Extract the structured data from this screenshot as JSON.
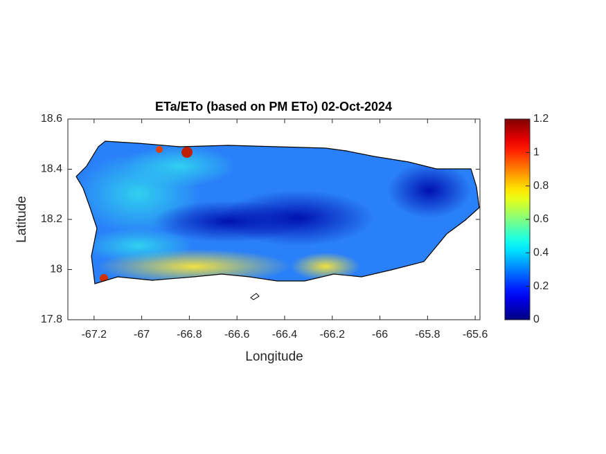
{
  "chart_data": {
    "type": "heatmap-map",
    "title": "ETa/ETo (based on PM ETo) 02-Oct-2024",
    "xlabel": "Longitude",
    "ylabel": "Latitude",
    "xlim": [
      -67.31,
      -65.58
    ],
    "xticks": [
      -67.2,
      -67,
      -66.8,
      -66.6,
      -66.4,
      -66.2,
      -66,
      -65.8,
      -65.6
    ],
    "ylim": [
      17.8,
      18.6
    ],
    "yticks": [
      17.8,
      18,
      18.2,
      18.4,
      18.6
    ],
    "colorbar": {
      "lim": [
        0,
        1.2
      ],
      "ticks": [
        0,
        0.2,
        0.4,
        0.6,
        0.8,
        1,
        1.2
      ],
      "colormap": "jet"
    }
  }
}
